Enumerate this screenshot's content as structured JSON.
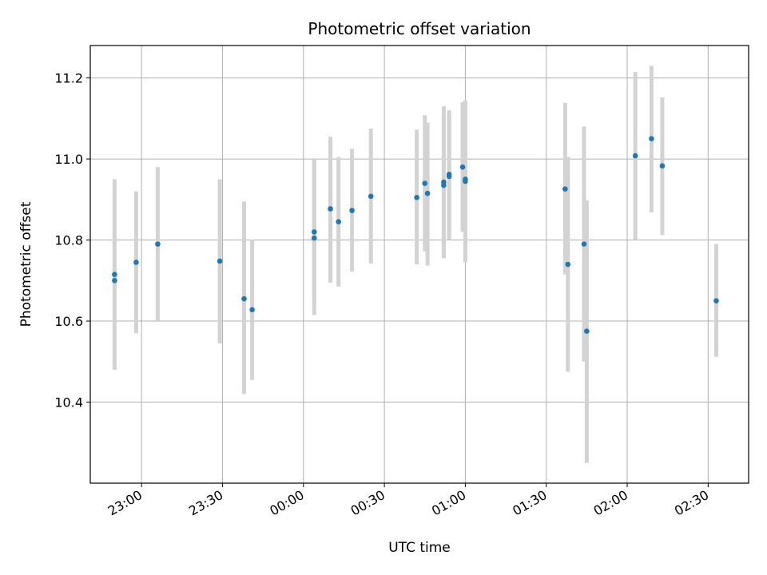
{
  "chart_data": {
    "type": "scatter",
    "title": "Photometric offset variation",
    "xlabel": "UTC time",
    "ylabel": "Photometric offset",
    "x_axis_kind": "time",
    "x_ticks": [
      "23:00",
      "23:30",
      "00:00",
      "00:30",
      "01:00",
      "01:30",
      "02:00",
      "02:30"
    ],
    "y_ticks": [
      10.4,
      10.6,
      10.8,
      11.0,
      11.2
    ],
    "xlim": [
      "22:41",
      "02:45"
    ],
    "ylim": [
      10.2,
      11.28
    ],
    "grid": true,
    "point_color": "#1f77b4",
    "errorbar_color": "#d3d3d3",
    "points": [
      {
        "x": "22:50",
        "y": 10.715,
        "err_low": 10.48,
        "err_high": 10.95
      },
      {
        "x": "22:50",
        "y": 10.7,
        "err_low": 10.48,
        "err_high": 10.92
      },
      {
        "x": "22:58",
        "y": 10.745,
        "err_low": 10.57,
        "err_high": 10.92
      },
      {
        "x": "23:06",
        "y": 10.79,
        "err_low": 10.6,
        "err_high": 10.98
      },
      {
        "x": "23:29",
        "y": 10.748,
        "err_low": 10.545,
        "err_high": 10.95
      },
      {
        "x": "23:38",
        "y": 10.655,
        "err_low": 10.42,
        "err_high": 10.895
      },
      {
        "x": "23:41",
        "y": 10.628,
        "err_low": 10.455,
        "err_high": 10.8
      },
      {
        "x": "00:04",
        "y": 10.805,
        "err_low": 10.615,
        "err_high": 11.0
      },
      {
        "x": "00:04",
        "y": 10.82,
        "err_low": 10.645,
        "err_high": 11.0
      },
      {
        "x": "00:10",
        "y": 10.877,
        "err_low": 10.695,
        "err_high": 11.055
      },
      {
        "x": "00:13",
        "y": 10.845,
        "err_low": 10.685,
        "err_high": 11.005
      },
      {
        "x": "00:18",
        "y": 10.873,
        "err_low": 10.722,
        "err_high": 11.025
      },
      {
        "x": "00:25",
        "y": 10.908,
        "err_low": 10.742,
        "err_high": 11.075
      },
      {
        "x": "00:42",
        "y": 10.905,
        "err_low": 10.74,
        "err_high": 11.072
      },
      {
        "x": "00:45",
        "y": 10.94,
        "err_low": 10.772,
        "err_high": 11.108
      },
      {
        "x": "00:46",
        "y": 10.915,
        "err_low": 10.737,
        "err_high": 11.09
      },
      {
        "x": "00:52",
        "y": 10.935,
        "err_low": 10.757,
        "err_high": 11.11
      },
      {
        "x": "00:52",
        "y": 10.943,
        "err_low": 10.755,
        "err_high": 11.13
      },
      {
        "x": "00:54",
        "y": 10.962,
        "err_low": 10.8,
        "err_high": 11.12
      },
      {
        "x": "00:54",
        "y": 10.957,
        "err_low": 10.8,
        "err_high": 11.11
      },
      {
        "x": "00:59",
        "y": 10.98,
        "err_low": 10.82,
        "err_high": 11.14
      },
      {
        "x": "01:00",
        "y": 10.95,
        "err_low": 10.745,
        "err_high": 11.145
      },
      {
        "x": "01:00",
        "y": 10.945,
        "err_low": 10.745,
        "err_high": 11.14
      },
      {
        "x": "01:37",
        "y": 10.926,
        "err_low": 10.715,
        "err_high": 11.138
      },
      {
        "x": "01:38",
        "y": 10.74,
        "err_low": 10.475,
        "err_high": 11.005
      },
      {
        "x": "01:44",
        "y": 10.79,
        "err_low": 10.5,
        "err_high": 11.08
      },
      {
        "x": "01:45",
        "y": 10.575,
        "err_low": 10.25,
        "err_high": 10.898
      },
      {
        "x": "02:03",
        "y": 11.008,
        "err_low": 10.8,
        "err_high": 11.215
      },
      {
        "x": "02:09",
        "y": 11.05,
        "err_low": 10.868,
        "err_high": 11.23
      },
      {
        "x": "02:13",
        "y": 10.983,
        "err_low": 10.812,
        "err_high": 11.152
      },
      {
        "x": "02:33",
        "y": 10.65,
        "err_low": 10.512,
        "err_high": 10.79
      }
    ]
  }
}
